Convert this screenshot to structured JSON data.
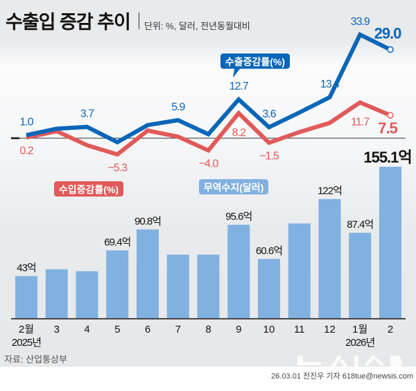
{
  "header": {
    "title": "수출입 증감 추이",
    "unit": "단위: %, 달러, 전년동월대비"
  },
  "footer": {
    "source": "자료: 산업통상부",
    "credit": "26.03.01 전진우 기자  618tue@newsis.com",
    "logo": "뉴시스"
  },
  "chart_data": [
    {
      "type": "line",
      "categories": [
        "2월",
        "3",
        "4",
        "5",
        "6",
        "7",
        "8",
        "9",
        "10",
        "11",
        "12",
        "1월",
        "2"
      ],
      "year_labels": {
        "0": "2025년",
        "11": "2026년"
      },
      "series": [
        {
          "name": "수출증감률(%)",
          "color": "#0a66b8",
          "values": [
            1.0,
            3.1,
            3.7,
            -1.3,
            4.3,
            5.9,
            1.3,
            12.7,
            3.6,
            8.4,
            13.4,
            33.9,
            29.0
          ],
          "labels": [
            "1.0",
            "",
            "3.7",
            "",
            "",
            "5.9",
            "",
            "12.7",
            "3.6",
            "",
            "13.4",
            "33.9",
            "29.0"
          ]
        },
        {
          "name": "수입증감률(%)",
          "color": "#e05a5a",
          "values": [
            0.2,
            2.3,
            -2.3,
            -5.3,
            2.5,
            0.5,
            -4.0,
            8.2,
            -1.5,
            2.0,
            5.0,
            11.7,
            7.5
          ],
          "labels": [
            "0.2",
            "",
            "",
            "-5.3",
            "",
            "",
            "-4.0",
            "8.2",
            "-1.5",
            "",
            "",
            "11.7",
            "7.5"
          ]
        }
      ]
    },
    {
      "type": "bar",
      "name": "무역수지(달러)",
      "color": "#80b1e0",
      "unit_suffix": "억",
      "values": [
        43,
        50,
        48,
        69.4,
        90.8,
        65,
        65,
        95.6,
        60.6,
        97,
        122,
        87.4,
        155.1
      ],
      "labels": [
        "43억",
        "",
        "",
        "69.4억",
        "90.8억",
        "",
        "",
        "95.6억",
        "60.6억",
        "",
        "122억",
        "87.4억",
        "155.1억"
      ]
    }
  ]
}
